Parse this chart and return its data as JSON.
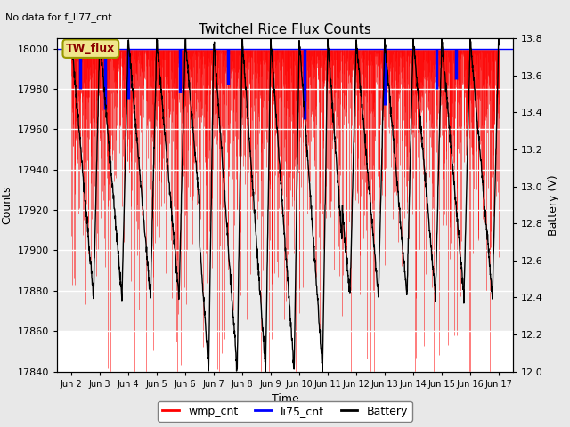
{
  "title": "Twitchel Rice Flux Counts",
  "subtitle": "No data for f_li77_cnt",
  "xlabel": "Time",
  "ylabel_left": "Counts",
  "ylabel_right": "Battery (V)",
  "ylim_left": [
    17840,
    18005
  ],
  "ylim_right": [
    12.0,
    13.8
  ],
  "yticks_left": [
    17840,
    17860,
    17880,
    17900,
    17920,
    17940,
    17960,
    17980,
    18000
  ],
  "yticks_right": [
    12.0,
    12.2,
    12.4,
    12.6,
    12.8,
    13.0,
    13.2,
    13.4,
    13.6,
    13.8
  ],
  "xtick_labels": [
    "Jun 2",
    "Jun 3",
    "Jun 4",
    "Jun 5",
    "Jun 6",
    "Jun 7",
    "Jun 8",
    "Jun 9",
    "Jun 10",
    "Jun 11",
    "Jun 12",
    "Jun 13",
    "Jun 14",
    "Jun 15",
    "Jun 16",
    "Jun 17"
  ],
  "xtick_positions": [
    1,
    2,
    3,
    4,
    5,
    6,
    7,
    8,
    9,
    10,
    11,
    12,
    13,
    14,
    15,
    16
  ],
  "legend_label_box": "TW_flux",
  "legend_box_color": "#f0e68c",
  "legend_box_edge": "#999900",
  "wmp_color": "red",
  "li75_color": "blue",
  "battery_color": "black",
  "background_color": "#e8e8e8",
  "plot_bg_color": "white",
  "grid_color": "white",
  "xlim": [
    0.5,
    16.5
  ]
}
